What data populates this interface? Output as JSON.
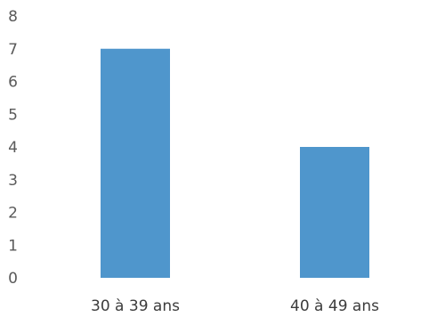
{
  "chart_data": {
    "type": "bar",
    "title": "",
    "xlabel": "",
    "ylabel": "",
    "categories": [
      "30 à 39 ans",
      "40 à 49 ans"
    ],
    "values": [
      7,
      4
    ],
    "ylim": [
      0,
      8
    ],
    "yticks": [
      "0",
      "1",
      "2",
      "3",
      "4",
      "5",
      "6",
      "7",
      "8"
    ],
    "grid": false,
    "legend": "none",
    "bar_color": "#4f96cc",
    "text_color": "#5a5a5a"
  }
}
